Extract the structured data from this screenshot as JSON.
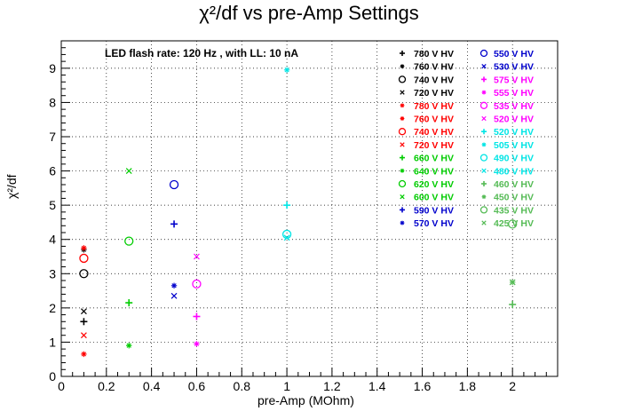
{
  "chart_data": {
    "type": "scatter",
    "title": "χ²/df vs pre-Amp Settings",
    "xlabel": "pre-Amp (MOhm)",
    "ylabel": "χ²/df",
    "annotation": "LED flash rate: 120 Hz , with LL: 10 nA",
    "xlim": [
      0,
      2.2
    ],
    "ylim": [
      0,
      9.8
    ],
    "x_ticks": [
      "0",
      "0.2",
      "0.4",
      "0.6",
      "0.8",
      "1",
      "1.2",
      "1.4",
      "1.6",
      "1.8",
      "2"
    ],
    "y_ticks": [
      "0",
      "1",
      "2",
      "3",
      "4",
      "5",
      "6",
      "7",
      "8",
      "9"
    ],
    "grid": true,
    "legend_position": "top-right",
    "series": [
      {
        "name": "780 V HV",
        "color": "#000000",
        "marker": "plus",
        "points": [
          [
            0.1,
            1.6
          ]
        ]
      },
      {
        "name": "760 V HV",
        "color": "#000000",
        "marker": "star",
        "points": [
          [
            0.1,
            3.7
          ]
        ]
      },
      {
        "name": "740 V HV",
        "color": "#000000",
        "marker": "circle",
        "points": [
          [
            0.1,
            3.0
          ]
        ]
      },
      {
        "name": "720 V HV",
        "color": "#000000",
        "marker": "cross",
        "points": [
          [
            0.1,
            1.9
          ]
        ]
      },
      {
        "name": "780 V HV",
        "color": "#ff0000",
        "marker": "star",
        "points": [
          [
            0.1,
            0.65
          ]
        ]
      },
      {
        "name": "760 V HV",
        "color": "#ff0000",
        "marker": "star",
        "points": [
          [
            0.1,
            3.75
          ]
        ]
      },
      {
        "name": "740 V HV",
        "color": "#ff0000",
        "marker": "circle",
        "points": [
          [
            0.1,
            3.45
          ]
        ]
      },
      {
        "name": "720 V HV",
        "color": "#ff0000",
        "marker": "cross",
        "points": [
          [
            0.1,
            1.2
          ]
        ]
      },
      {
        "name": "660 V HV",
        "color": "#00cc00",
        "marker": "plus",
        "points": [
          [
            0.3,
            2.15
          ]
        ]
      },
      {
        "name": "640 V HV",
        "color": "#00cc00",
        "marker": "star",
        "points": [
          [
            0.3,
            0.9
          ]
        ]
      },
      {
        "name": "620 V HV",
        "color": "#00cc00",
        "marker": "circle",
        "points": [
          [
            0.3,
            3.95
          ]
        ]
      },
      {
        "name": "600 V HV",
        "color": "#00cc00",
        "marker": "cross",
        "points": [
          [
            0.3,
            6.0
          ]
        ]
      },
      {
        "name": "590 V HV",
        "color": "#0000cc",
        "marker": "plus",
        "points": [
          [
            0.5,
            4.45
          ]
        ]
      },
      {
        "name": "570 V HV",
        "color": "#0000cc",
        "marker": "star",
        "points": [
          [
            0.5,
            2.65
          ]
        ]
      },
      {
        "name": "550 V HV",
        "color": "#0000cc",
        "marker": "circle",
        "points": [
          [
            0.5,
            5.6
          ]
        ]
      },
      {
        "name": "530 V HV",
        "color": "#0000cc",
        "marker": "cross",
        "points": [
          [
            0.5,
            2.35
          ]
        ]
      },
      {
        "name": "575 V HV",
        "color": "#ff00ff",
        "marker": "plus",
        "points": [
          [
            0.6,
            1.75
          ]
        ]
      },
      {
        "name": "555 V HV",
        "color": "#ff00ff",
        "marker": "star",
        "points": [
          [
            0.6,
            0.95
          ]
        ]
      },
      {
        "name": "535 V HV",
        "color": "#ff00ff",
        "marker": "circle",
        "points": [
          [
            0.6,
            2.7
          ]
        ]
      },
      {
        "name": "520 V HV",
        "color": "#ff00ff",
        "marker": "cross",
        "points": [
          [
            0.6,
            3.5
          ]
        ]
      },
      {
        "name": "520 V HV",
        "color": "#00e5e5",
        "marker": "plus",
        "points": [
          [
            1.0,
            5.0
          ]
        ]
      },
      {
        "name": "505 V HV",
        "color": "#00e5e5",
        "marker": "star",
        "points": [
          [
            1.0,
            8.95
          ]
        ]
      },
      {
        "name": "490 V HV",
        "color": "#00e5e5",
        "marker": "circle",
        "points": [
          [
            1.0,
            4.15
          ]
        ]
      },
      {
        "name": "480 V HV",
        "color": "#00e5e5",
        "marker": "cross",
        "points": [
          [
            1.0,
            4.05
          ]
        ]
      },
      {
        "name": "460 V HV",
        "color": "#55bb55",
        "marker": "plus",
        "points": [
          [
            2.0,
            2.1
          ]
        ]
      },
      {
        "name": "450 V HV",
        "color": "#55bb55",
        "marker": "star",
        "points": [
          [
            2.0,
            2.75
          ]
        ]
      },
      {
        "name": "435 V HV",
        "color": "#55bb55",
        "marker": "circle",
        "points": [
          [
            2.0,
            4.45
          ]
        ]
      },
      {
        "name": "425 V HV",
        "color": "#55bb55",
        "marker": "cross",
        "points": [
          [
            2.0,
            2.75
          ]
        ]
      }
    ]
  }
}
